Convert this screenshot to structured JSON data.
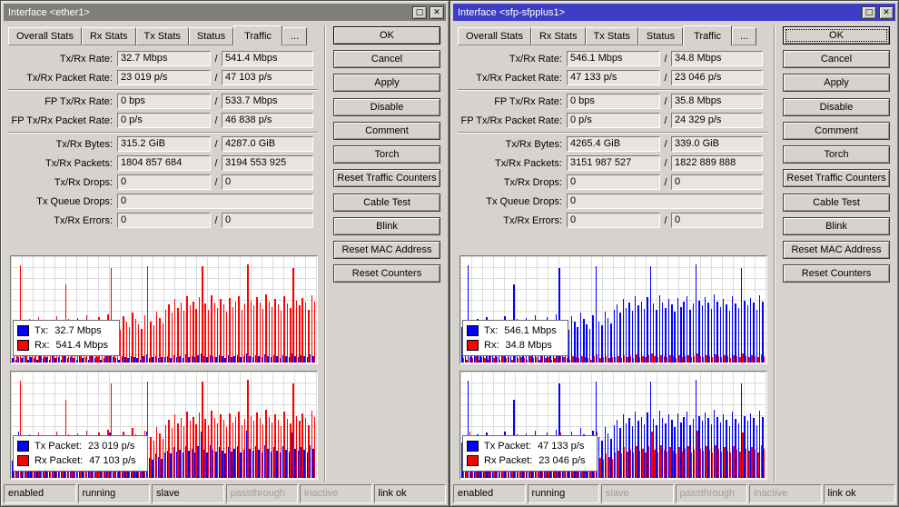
{
  "slash": "/",
  "icons": {
    "maximize": "□",
    "close": "✕"
  },
  "colors": {
    "window_bg": "#d6d3ce",
    "active_title": "#3d3dc6",
    "inactive_title": "#807e79",
    "tx": "#0000ff",
    "rx": "#ff0000"
  },
  "windows": [
    {
      "id": "ether1",
      "title": "Interface <ether1>",
      "titlebar_color": "#807e79",
      "tabs": [
        "Overall Stats",
        "Rx Stats",
        "Tx Stats",
        "Status",
        "Traffic",
        "..."
      ],
      "active_tab": "Traffic",
      "fields": [
        {
          "label": "Tx/Rx Rate:",
          "v1": "32.7 Mbps",
          "v2": "541.4 Mbps"
        },
        {
          "label": "Tx/Rx Packet Rate:",
          "v1": "23 019 p/s",
          "v2": "47 103 p/s",
          "sep_after": true
        },
        {
          "label": "FP Tx/Rx Rate:",
          "v1": "0 bps",
          "v2": "533.7 Mbps"
        },
        {
          "label": "FP Tx/Rx Packet Rate:",
          "v1": "0 p/s",
          "v2": "46 838 p/s",
          "sep_after": true
        },
        {
          "label": "Tx/Rx Bytes:",
          "v1": "315.2 GiB",
          "v2": "4287.0 GiB"
        },
        {
          "label": "Tx/Rx Packets:",
          "v1": "1804 857 684",
          "v2": "3194 553 925"
        },
        {
          "label": "Tx/Rx Drops:",
          "v1": "0",
          "v2": "0"
        },
        {
          "label": "Tx Queue Drops:",
          "v1": "0",
          "single": true
        },
        {
          "label": "Tx/Rx Errors:",
          "v1": "0",
          "v2": "0"
        }
      ],
      "button_groups": [
        [
          "OK",
          "Cancel",
          "Apply"
        ],
        [
          "Disable",
          "Comment",
          "Torch",
          "Reset Traffic Counters"
        ],
        [
          "Cable Test",
          "Blink",
          "Reset MAC Address",
          "Reset Counters"
        ]
      ],
      "default_button": "OK",
      "focused_button": "",
      "graphs": [
        {
          "chart_index": 0,
          "legend": [
            {
              "color": "#0000ff",
              "label": "Tx:",
              "value": "32.7 Mbps"
            },
            {
              "color": "#ff0000",
              "label": "Rx:",
              "value": "541.4 Mbps"
            }
          ]
        },
        {
          "chart_index": 1,
          "legend": [
            {
              "color": "#0000ff",
              "label": "Tx Packet:",
              "value": "23 019 p/s"
            },
            {
              "color": "#ff0000",
              "label": "Rx Packet:",
              "value": "47 103 p/s"
            }
          ]
        }
      ],
      "status": [
        {
          "text": "enabled",
          "dim": false
        },
        {
          "text": "running",
          "dim": false
        },
        {
          "text": "slave",
          "dim": false
        },
        {
          "text": "passthrough",
          "dim": true
        },
        {
          "text": "inactive",
          "dim": true
        },
        {
          "text": "link ok",
          "dim": false
        }
      ]
    },
    {
      "id": "sfp-sfpplus1",
      "title": "Interface <sfp-sfpplus1>",
      "titlebar_color": "#3d3dc6",
      "tabs": [
        "Overall Stats",
        "Rx Stats",
        "Tx Stats",
        "Status",
        "Traffic",
        "..."
      ],
      "active_tab": "Traffic",
      "fields": [
        {
          "label": "Tx/Rx Rate:",
          "v1": "546.1 Mbps",
          "v2": "34.8 Mbps"
        },
        {
          "label": "Tx/Rx Packet Rate:",
          "v1": "47 133 p/s",
          "v2": "23 046 p/s",
          "sep_after": true
        },
        {
          "label": "FP Tx/Rx Rate:",
          "v1": "0 bps",
          "v2": "35.8 Mbps"
        },
        {
          "label": "FP Tx/Rx Packet Rate:",
          "v1": "0 p/s",
          "v2": "24 329 p/s",
          "sep_after": true
        },
        {
          "label": "Tx/Rx Bytes:",
          "v1": "4265.4 GiB",
          "v2": "339.0 GiB"
        },
        {
          "label": "Tx/Rx Packets:",
          "v1": "3151 987 527",
          "v2": "1822 889 888"
        },
        {
          "label": "Tx/Rx Drops:",
          "v1": "0",
          "v2": "0"
        },
        {
          "label": "Tx Queue Drops:",
          "v1": "0",
          "single": true
        },
        {
          "label": "Tx/Rx Errors:",
          "v1": "0",
          "v2": "0"
        }
      ],
      "button_groups": [
        [
          "OK",
          "Cancel",
          "Apply"
        ],
        [
          "Disable",
          "Comment",
          "Torch",
          "Reset Traffic Counters"
        ],
        [
          "Cable Test",
          "Blink",
          "Reset MAC Address",
          "Reset Counters"
        ]
      ],
      "default_button": "OK",
      "focused_button": "OK",
      "graphs": [
        {
          "chart_index": 2,
          "legend": [
            {
              "color": "#0000ff",
              "label": "Tx:",
              "value": "546.1 Mbps"
            },
            {
              "color": "#ff0000",
              "label": "Rx:",
              "value": "34.8 Mbps"
            }
          ]
        },
        {
          "chart_index": 3,
          "legend": [
            {
              "color": "#0000ff",
              "label": "Tx Packet:",
              "value": "47 133 p/s"
            },
            {
              "color": "#ff0000",
              "label": "Rx Packet:",
              "value": "23 046 p/s"
            }
          ]
        }
      ],
      "status": [
        {
          "text": "enabled",
          "dim": false
        },
        {
          "text": "running",
          "dim": false
        },
        {
          "text": "slave",
          "dim": true
        },
        {
          "text": "passthrough",
          "dim": true
        },
        {
          "text": "inactive",
          "dim": true
        },
        {
          "text": "link ok",
          "dim": false
        }
      ]
    }
  ],
  "chart_data": {
    "note": "Four live traffic sparkline bar charts (unlabeled axes; x = time samples, newest at right; values estimated as percent of plot height). Grid on, legend bottom-left.",
    "patterns_pct": {
      "tall": [
        34,
        31,
        92,
        38,
        33,
        41,
        36,
        30,
        43,
        37,
        32,
        40,
        35,
        29,
        44,
        38,
        33,
        74,
        41,
        35,
        30,
        42,
        37,
        33,
        45,
        39,
        34,
        31,
        43,
        38,
        33,
        46,
        90,
        40,
        35,
        31,
        44,
        39,
        34,
        47,
        41,
        36,
        32,
        45,
        91,
        39,
        35,
        48,
        42,
        37,
        50,
        55,
        47,
        60,
        52,
        57,
        49,
        63,
        54,
        58,
        51,
        62,
        91,
        56,
        50,
        64,
        57,
        52,
        60,
        55,
        48,
        61,
        53,
        58,
        63,
        50,
        56,
        93,
        59,
        54,
        62,
        57,
        51,
        65,
        58,
        53,
        60,
        55,
        49,
        63,
        56,
        52,
        90,
        59,
        54,
        61,
        57,
        50,
        64,
        58
      ],
      "half": [
        16,
        15,
        44,
        18,
        16,
        20,
        17,
        14,
        21,
        18,
        15,
        19,
        17,
        14,
        21,
        18,
        16,
        36,
        20,
        17,
        14,
        20,
        18,
        16,
        22,
        19,
        16,
        15,
        21,
        18,
        16,
        22,
        43,
        19,
        17,
        15,
        21,
        19,
        16,
        23,
        20,
        17,
        15,
        22,
        44,
        19,
        17,
        23,
        20,
        18,
        24,
        26,
        23,
        29,
        25,
        27,
        24,
        30,
        26,
        28,
        24,
        30,
        44,
        27,
        24,
        31,
        27,
        25,
        29,
        26,
        23,
        29,
        25,
        28,
        30,
        24,
        27,
        45,
        28,
        26,
        30,
        27,
        24,
        31,
        28,
        25,
        29,
        26,
        24,
        30,
        27,
        25,
        43,
        28,
        26,
        29,
        27,
        24,
        31,
        28
      ],
      "small": [
        4,
        3,
        5,
        4,
        6,
        3,
        5,
        4,
        3,
        6,
        4,
        5,
        3,
        6,
        4,
        5,
        3,
        7,
        4,
        5,
        4,
        3,
        6,
        4,
        5,
        3,
        6,
        4,
        5,
        3,
        4,
        6,
        8,
        5,
        4,
        3,
        6,
        5,
        4,
        6,
        5,
        4,
        3,
        6,
        8,
        4,
        5,
        6,
        4,
        5,
        5,
        6,
        4,
        7,
        5,
        6,
        4,
        8,
        5,
        6,
        5,
        7,
        9,
        6,
        5,
        7,
        6,
        5,
        7,
        6,
        4,
        7,
        5,
        6,
        7,
        5,
        6,
        9,
        6,
        5,
        7,
        6,
        5,
        8,
        6,
        5,
        7,
        6,
        4,
        7,
        6,
        5,
        9,
        6,
        5,
        7,
        6,
        5,
        8,
        6
      ]
    },
    "charts": [
      {
        "id": "ether1-rate",
        "type": "bar",
        "grid": true,
        "legend_position": "bottom-left",
        "series": [
          {
            "name": "Tx",
            "color": "#0000ff",
            "current": "32.7 Mbps",
            "values_pct_key": "small"
          },
          {
            "name": "Rx",
            "color": "#ff0000",
            "current": "541.4 Mbps",
            "values_pct_key": "tall"
          }
        ]
      },
      {
        "id": "ether1-packet-rate",
        "type": "bar",
        "grid": true,
        "legend_position": "bottom-left",
        "series": [
          {
            "name": "Tx Packet",
            "color": "#0000ff",
            "current": "23 019 p/s",
            "values_pct_key": "half"
          },
          {
            "name": "Rx Packet",
            "color": "#ff0000",
            "current": "47 103 p/s",
            "values_pct_key": "tall"
          }
        ]
      },
      {
        "id": "sfp-sfpplus1-rate",
        "type": "bar",
        "grid": true,
        "legend_position": "bottom-left",
        "series": [
          {
            "name": "Tx",
            "color": "#0000ff",
            "current": "546.1 Mbps",
            "values_pct_key": "tall"
          },
          {
            "name": "Rx",
            "color": "#ff0000",
            "current": "34.8 Mbps",
            "values_pct_key": "small"
          }
        ]
      },
      {
        "id": "sfp-sfpplus1-packet-rate",
        "type": "bar",
        "grid": true,
        "legend_position": "bottom-left",
        "series": [
          {
            "name": "Tx Packet",
            "color": "#0000ff",
            "current": "47 133 p/s",
            "values_pct_key": "tall"
          },
          {
            "name": "Rx Packet",
            "color": "#ff0000",
            "current": "23 046 p/s",
            "values_pct_key": "half"
          }
        ]
      }
    ]
  }
}
